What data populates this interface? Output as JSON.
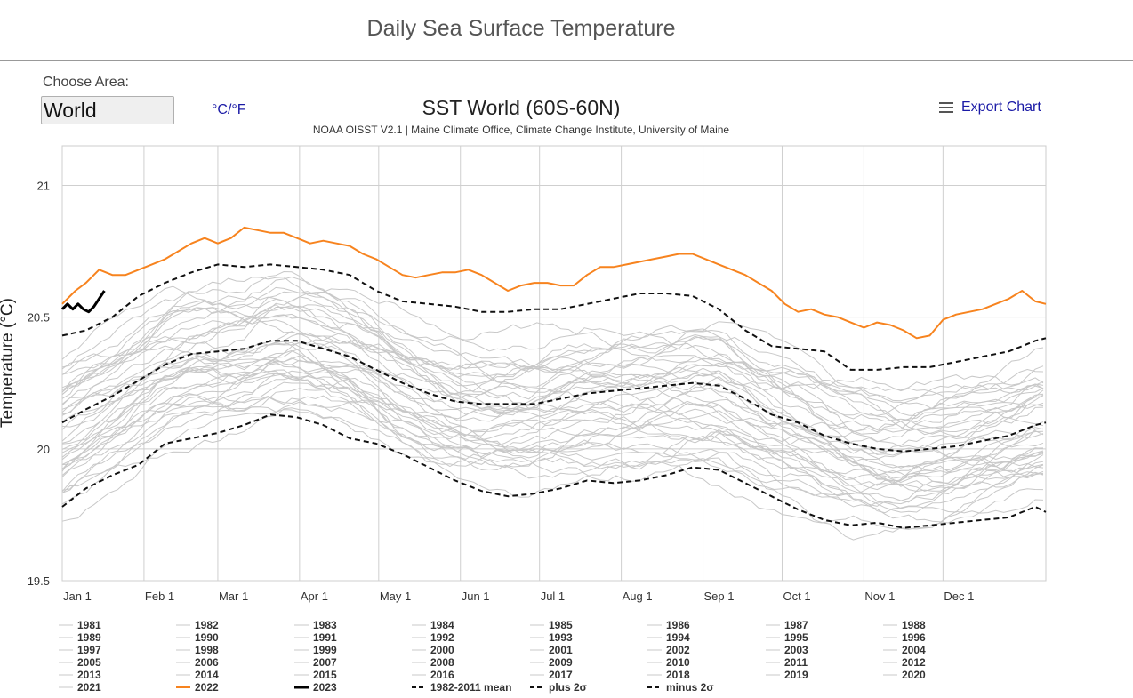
{
  "page": {
    "title": "Daily Sea Surface Temperature",
    "choose_area_label": "Choose Area:",
    "area_value": "World",
    "unit_toggle_label": "°C/°F",
    "export_label": "Export Chart"
  },
  "icons": {
    "export": "hamburger-menu-icon"
  },
  "colors": {
    "year_2022": "#f7831e",
    "year_2023": "#000000",
    "climatology": "#111111",
    "other_years": "#c8c8c8",
    "link": "#1a1aa6"
  },
  "chart_data": {
    "type": "line",
    "title": "SST World (60S-60N)",
    "subtitle": "NOAA OISST V2.1 | Maine Climate Office, Climate Change Institute, University of Maine",
    "xlabel": "",
    "ylabel": "Temperature (°C)",
    "ylim": [
      19.5,
      21.15
    ],
    "yticks": [
      19.5,
      20,
      20.5,
      21
    ],
    "ytick_labels": [
      "19.5",
      "20",
      "20.5",
      "21"
    ],
    "xticks": [
      1,
      32,
      60,
      91,
      121,
      152,
      182,
      213,
      244,
      274,
      305,
      335
    ],
    "xtick_labels": [
      "Jan 1",
      "Feb 1",
      "Mar 1",
      "Apr 1",
      "May 1",
      "Jun 1",
      "Jul 1",
      "Aug 1",
      "Sep 1",
      "Oct 1",
      "Nov 1",
      "Dec 1"
    ],
    "xlim": [
      1,
      374
    ],
    "grid": true,
    "legend_placement": "bottom",
    "series": [
      {
        "name": "2022",
        "style": "orange",
        "x": [
          1,
          6,
          10,
          15,
          20,
          25,
          30,
          35,
          40,
          45,
          50,
          55,
          60,
          65,
          70,
          75,
          80,
          85,
          90,
          95,
          100,
          105,
          110,
          115,
          120,
          125,
          130,
          135,
          140,
          145,
          150,
          155,
          160,
          165,
          170,
          175,
          180,
          185,
          190,
          195,
          200,
          205,
          210,
          215,
          220,
          225,
          230,
          235,
          240,
          245,
          250,
          255,
          260,
          265,
          270,
          275,
          280,
          285,
          290,
          295,
          300,
          305,
          310,
          315,
          320,
          325,
          330,
          335,
          340,
          345,
          350,
          355,
          360,
          365,
          370,
          374
        ],
        "y": [
          20.55,
          20.6,
          20.63,
          20.68,
          20.66,
          20.66,
          20.68,
          20.7,
          20.72,
          20.75,
          20.78,
          20.8,
          20.78,
          20.8,
          20.84,
          20.83,
          20.82,
          20.82,
          20.8,
          20.78,
          20.79,
          20.78,
          20.77,
          20.74,
          20.72,
          20.69,
          20.66,
          20.65,
          20.66,
          20.67,
          20.67,
          20.68,
          20.66,
          20.63,
          20.6,
          20.62,
          20.63,
          20.63,
          20.62,
          20.62,
          20.66,
          20.69,
          20.69,
          20.7,
          20.71,
          20.72,
          20.73,
          20.74,
          20.74,
          20.72,
          20.7,
          20.68,
          20.66,
          20.63,
          20.6,
          20.55,
          20.52,
          20.53,
          20.51,
          20.5,
          20.48,
          20.46,
          20.48,
          20.47,
          20.45,
          20.42,
          20.43,
          20.49,
          20.51,
          20.52,
          20.53,
          20.55,
          20.57,
          20.6,
          20.56,
          20.55
        ]
      },
      {
        "name": "2023",
        "style": "black",
        "x": [
          1,
          3,
          5,
          7,
          9,
          11,
          13,
          15,
          17
        ],
        "y": [
          20.53,
          20.55,
          20.53,
          20.55,
          20.53,
          20.52,
          20.54,
          20.57,
          20.6
        ]
      },
      {
        "name": "1982-2011 mean",
        "style": "dash",
        "x": [
          1,
          10,
          20,
          30,
          40,
          50,
          60,
          70,
          80,
          90,
          100,
          110,
          120,
          130,
          140,
          150,
          160,
          170,
          180,
          190,
          200,
          210,
          220,
          230,
          240,
          250,
          260,
          270,
          280,
          290,
          300,
          310,
          320,
          330,
          340,
          350,
          360,
          370,
          374
        ],
        "y": [
          20.1,
          20.15,
          20.2,
          20.26,
          20.32,
          20.36,
          20.37,
          20.38,
          20.41,
          20.41,
          20.38,
          20.35,
          20.3,
          20.25,
          20.21,
          20.18,
          20.17,
          20.17,
          20.17,
          20.19,
          20.21,
          20.22,
          20.23,
          20.24,
          20.25,
          20.24,
          20.19,
          20.13,
          20.1,
          20.05,
          20.02,
          20.0,
          19.99,
          20.0,
          20.01,
          20.03,
          20.05,
          20.09,
          20.1
        ]
      },
      {
        "name": "plus 2σ",
        "style": "dash",
        "x": [
          1,
          10,
          20,
          30,
          40,
          50,
          60,
          70,
          80,
          90,
          100,
          110,
          120,
          130,
          140,
          150,
          160,
          170,
          180,
          190,
          200,
          210,
          220,
          230,
          240,
          250,
          260,
          270,
          280,
          290,
          300,
          310,
          320,
          330,
          340,
          350,
          360,
          370,
          374
        ],
        "y": [
          20.43,
          20.45,
          20.5,
          20.58,
          20.63,
          20.67,
          20.7,
          20.69,
          20.7,
          20.69,
          20.68,
          20.66,
          20.6,
          20.56,
          20.55,
          20.54,
          20.52,
          20.52,
          20.53,
          20.53,
          20.55,
          20.57,
          20.59,
          20.59,
          20.58,
          20.53,
          20.45,
          20.39,
          20.38,
          20.37,
          20.3,
          20.3,
          20.31,
          20.31,
          20.33,
          20.35,
          20.37,
          20.41,
          20.42
        ]
      },
      {
        "name": "minus 2σ",
        "style": "dash",
        "x": [
          1,
          10,
          20,
          30,
          40,
          50,
          60,
          70,
          80,
          90,
          100,
          110,
          120,
          130,
          140,
          150,
          160,
          170,
          180,
          190,
          200,
          210,
          220,
          230,
          240,
          250,
          260,
          270,
          280,
          290,
          300,
          310,
          320,
          330,
          340,
          350,
          360,
          370,
          374
        ],
        "y": [
          19.78,
          19.85,
          19.9,
          19.94,
          20.02,
          20.04,
          20.06,
          20.09,
          20.13,
          20.12,
          20.09,
          20.04,
          20.02,
          19.98,
          19.93,
          19.88,
          19.84,
          19.82,
          19.83,
          19.85,
          19.88,
          19.87,
          19.88,
          19.9,
          19.93,
          19.92,
          19.87,
          19.82,
          19.77,
          19.73,
          19.71,
          19.72,
          19.7,
          19.71,
          19.72,
          19.73,
          19.74,
          19.78,
          19.76
        ]
      }
    ],
    "legend": {
      "rows": [
        [
          "1981",
          "1982",
          "1983",
          "1984",
          "1985",
          "1986",
          "1987",
          "1988"
        ],
        [
          "1989",
          "1990",
          "1991",
          "1992",
          "1993",
          "1994",
          "1995",
          "1996"
        ],
        [
          "1997",
          "1998",
          "1999",
          "2000",
          "2001",
          "2002",
          "2003",
          "2004"
        ],
        [
          "2005",
          "2006",
          "2007",
          "2008",
          "2009",
          "2010",
          "2011",
          "2012"
        ],
        [
          "2013",
          "2014",
          "2015",
          "2016",
          "2017",
          "2018",
          "2019",
          "2020"
        ],
        [
          "2021",
          "2022",
          "2023",
          "1982-2011 mean",
          "plus 2σ",
          "minus 2σ"
        ]
      ],
      "other_years": [
        "1981",
        "1982",
        "1983",
        "1984",
        "1985",
        "1986",
        "1987",
        "1988",
        "1989",
        "1990",
        "1991",
        "1992",
        "1993",
        "1994",
        "1995",
        "1996",
        "1997",
        "1998",
        "1999",
        "2000",
        "2001",
        "2002",
        "2003",
        "2004",
        "2005",
        "2006",
        "2007",
        "2008",
        "2009",
        "2010",
        "2011",
        "2012",
        "2013",
        "2014",
        "2015",
        "2016",
        "2017",
        "2018",
        "2019",
        "2020",
        "2021"
      ]
    }
  }
}
